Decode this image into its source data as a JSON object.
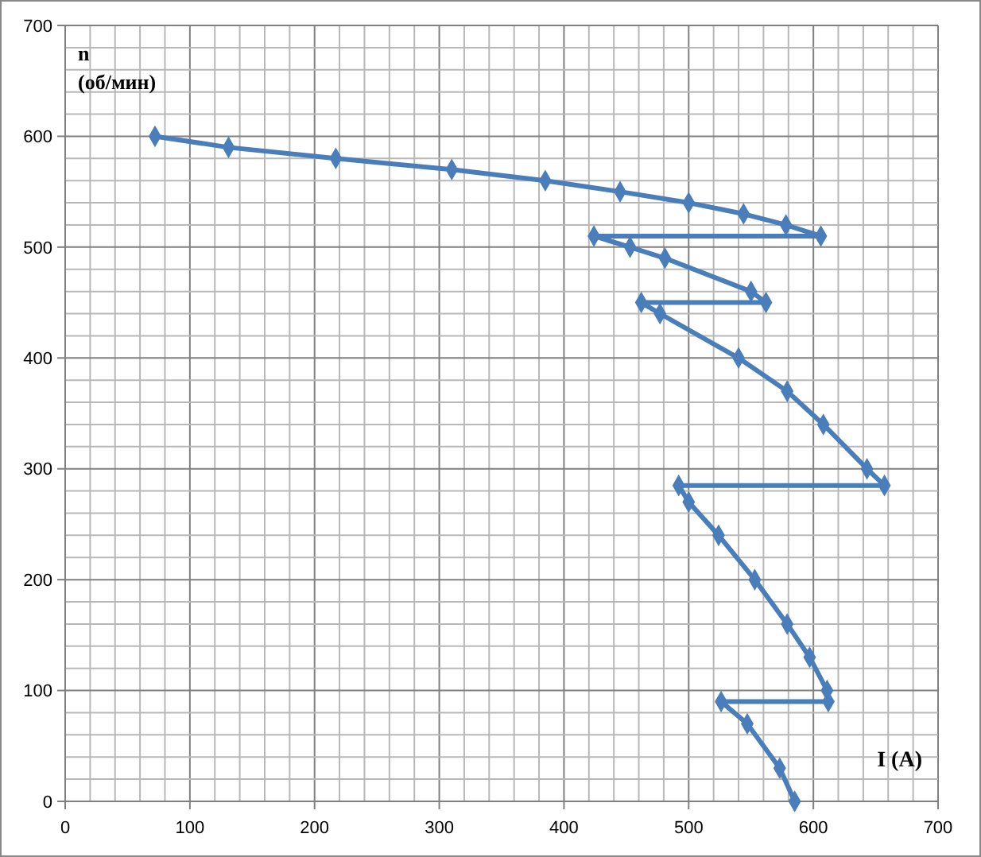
{
  "chart_data": {
    "type": "line",
    "xlabel": "I (A)",
    "ylabel": "n\n(об/мин)",
    "marker": "diamond",
    "grid": true,
    "series": [
      {
        "color": "#4a7ebb",
        "x": [
          72,
          131,
          217,
          310,
          385,
          445,
          500,
          544,
          578,
          606,
          424,
          453,
          481,
          550,
          562,
          462,
          477,
          540,
          579,
          608,
          643,
          657,
          492,
          500,
          524,
          553,
          579,
          597,
          611,
          612,
          526,
          547,
          573,
          585
        ],
        "values": [
          600,
          590,
          580,
          570,
          560,
          550,
          540,
          530,
          520,
          510,
          510,
          500,
          490,
          460,
          450,
          450,
          440,
          400,
          370,
          340,
          300,
          285,
          285,
          270,
          240,
          200,
          160,
          130,
          100,
          90,
          90,
          70,
          30,
          0
        ]
      }
    ],
    "xlim": [
      0,
      700
    ],
    "xticks": [
      0,
      {
        "value": 20,
        "label": null
      },
      {
        "value": 40,
        "label": null
      },
      {
        "value": 60,
        "label": null
      },
      {
        "value": 80,
        "label": null
      },
      100,
      {
        "value": 120,
        "label": null
      },
      {
        "value": 140,
        "label": null
      },
      {
        "value": 160,
        "label": null
      },
      {
        "value": 180,
        "label": null
      },
      200,
      {
        "value": 220,
        "label": null
      },
      {
        "value": 240,
        "label": null
      },
      {
        "value": 260,
        "label": null
      },
      {
        "value": 280,
        "label": null
      },
      300,
      {
        "value": 320,
        "label": null
      },
      {
        "value": 340,
        "label": null
      },
      {
        "value": 360,
        "label": null
      },
      {
        "value": 380,
        "label": null
      },
      400,
      {
        "value": 420,
        "label": null
      },
      {
        "value": 440,
        "label": null
      },
      {
        "value": 460,
        "label": null
      },
      {
        "value": 480,
        "label": null
      },
      500,
      {
        "value": 520,
        "label": null
      },
      {
        "value": 540,
        "label": null
      },
      {
        "value": 560,
        "label": null
      },
      {
        "value": 580,
        "label": null
      },
      600,
      {
        "value": 620,
        "label": null
      },
      {
        "value": 640,
        "label": null
      },
      {
        "value": 660,
        "label": null
      },
      {
        "value": 680,
        "label": null
      },
      700
    ],
    "ylim": [
      0,
      700
    ],
    "yticks": [
      0,
      {
        "value": 20,
        "label": null
      },
      {
        "value": 40,
        "label": null
      },
      {
        "value": 60,
        "label": null
      },
      {
        "value": 80,
        "label": null
      },
      100,
      {
        "value": 120,
        "label": null
      },
      {
        "value": 140,
        "label": null
      },
      {
        "value": 160,
        "label": null
      },
      {
        "value": 180,
        "label": null
      },
      200,
      {
        "value": 220,
        "label": null
      },
      {
        "value": 240,
        "label": null
      },
      {
        "value": 260,
        "label": null
      },
      {
        "value": 280,
        "label": null
      },
      300,
      {
        "value": 320,
        "label": null
      },
      {
        "value": 340,
        "label": null
      },
      {
        "value": 360,
        "label": null
      },
      {
        "value": 380,
        "label": null
      },
      400,
      {
        "value": 420,
        "label": null
      },
      {
        "value": 440,
        "label": null
      },
      {
        "value": 460,
        "label": null
      },
      {
        "value": 480,
        "label": null
      },
      500,
      {
        "value": 520,
        "label": null
      },
      {
        "value": 540,
        "label": null
      },
      {
        "value": 560,
        "label": null
      },
      {
        "value": 580,
        "label": null
      },
      600,
      {
        "value": 620,
        "label": null
      },
      {
        "value": 640,
        "label": null
      },
      {
        "value": 660,
        "label": null
      },
      {
        "value": 680,
        "label": null
      },
      700
    ]
  }
}
